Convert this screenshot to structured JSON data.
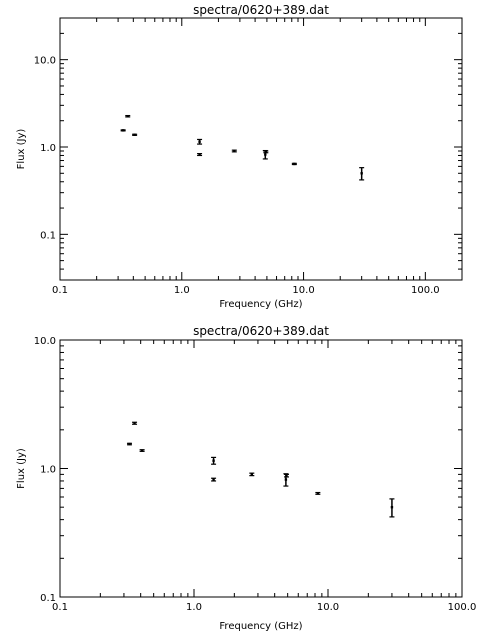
{
  "chart_data": [
    {
      "type": "scatter",
      "title": "spectra/0620+389.dat",
      "xlabel": "Frequency (GHz)",
      "ylabel": "Flux (Jy)",
      "xscale": "log",
      "yscale": "log",
      "xlim": [
        0.1,
        200
      ],
      "ylim": [
        0.03,
        30
      ],
      "xticks": [
        "0.1",
        "1.0",
        "10.0",
        "100.0"
      ],
      "yticks": [
        "0.1",
        "1.0",
        "10.0"
      ],
      "series": [
        {
          "points": [
            {
              "x": 0.33,
              "y": 1.55,
              "err": 0.02
            },
            {
              "x": 0.36,
              "y": 2.25,
              "err": 0.04
            },
            {
              "x": 0.41,
              "y": 1.38,
              "err": 0.02
            },
            {
              "x": 1.4,
              "y": 1.15,
              "err": 0.07
            },
            {
              "x": 1.4,
              "y": 0.82,
              "err": 0.02
            },
            {
              "x": 2.7,
              "y": 0.9,
              "err": 0.02
            },
            {
              "x": 4.85,
              "y": 0.82,
              "err": 0.09
            },
            {
              "x": 4.9,
              "y": 0.88,
              "err": 0.02
            },
            {
              "x": 8.4,
              "y": 0.64,
              "err": 0.01
            },
            {
              "x": 30,
              "y": 0.5,
              "err": 0.08
            }
          ]
        }
      ]
    },
    {
      "type": "scatter",
      "title": "spectra/0620+389.dat",
      "xlabel": "Frequency (GHz)",
      "ylabel": "Flux (Jy)",
      "xscale": "log",
      "yscale": "log",
      "xlim": [
        0.1,
        100
      ],
      "ylim": [
        0.1,
        10
      ],
      "xticks": [
        "0.1",
        "1.0",
        "10.0",
        "100.0"
      ],
      "yticks": [
        "0.1",
        "1.0",
        "10.0"
      ],
      "series": [
        {
          "points": [
            {
              "x": 0.33,
              "y": 1.55,
              "err": 0.02
            },
            {
              "x": 0.36,
              "y": 2.25,
              "err": 0.04
            },
            {
              "x": 0.41,
              "y": 1.38,
              "err": 0.02
            },
            {
              "x": 1.4,
              "y": 1.15,
              "err": 0.07
            },
            {
              "x": 1.4,
              "y": 0.82,
              "err": 0.02
            },
            {
              "x": 2.7,
              "y": 0.9,
              "err": 0.02
            },
            {
              "x": 4.85,
              "y": 0.82,
              "err": 0.09
            },
            {
              "x": 4.9,
              "y": 0.88,
              "err": 0.02
            },
            {
              "x": 8.4,
              "y": 0.64,
              "err": 0.01
            },
            {
              "x": 30,
              "y": 0.5,
              "err": 0.08
            }
          ]
        }
      ]
    }
  ]
}
